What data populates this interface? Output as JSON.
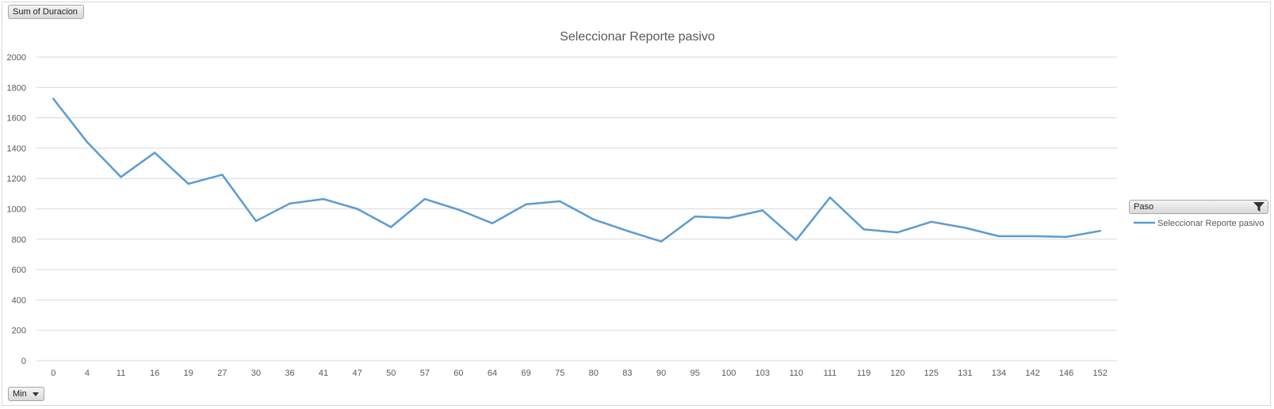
{
  "chart_data": {
    "type": "line",
    "title": "Seleccionar Reporte pasivo",
    "xlabel": "",
    "ylabel": "",
    "ylim": [
      0,
      2000
    ],
    "yticks": [
      0,
      200,
      400,
      600,
      800,
      1000,
      1200,
      1400,
      1600,
      1800,
      2000
    ],
    "grid": true,
    "legend_position": "right",
    "categories": [
      "0",
      "4",
      "11",
      "16",
      "19",
      "27",
      "30",
      "36",
      "41",
      "47",
      "50",
      "57",
      "60",
      "64",
      "69",
      "75",
      "80",
      "83",
      "90",
      "95",
      "100",
      "103",
      "110",
      "111",
      "119",
      "120",
      "125",
      "131",
      "134",
      "142",
      "146",
      "152"
    ],
    "series": [
      {
        "name": "Seleccionar Reporte pasivo",
        "color": "#5b9bd5",
        "values": [
          1725,
          1440,
          1210,
          1370,
          1165,
          1225,
          920,
          1035,
          1065,
          1000,
          880,
          1065,
          995,
          905,
          1030,
          1050,
          930,
          855,
          785,
          950,
          940,
          990,
          795,
          1075,
          865,
          845,
          915,
          875,
          820,
          820,
          815,
          855
        ]
      }
    ]
  },
  "controls": {
    "value_field": "Sum of Duracion",
    "axis_field": "Min",
    "legend_field": "Paso"
  },
  "colors": {
    "gridline": "#d9d9d9",
    "series": "#5b9bd5"
  }
}
